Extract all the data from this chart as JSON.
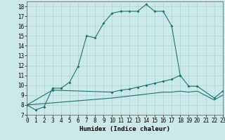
{
  "title": "",
  "xlabel": "Humidex (Indice chaleur)",
  "xlim": [
    0,
    23
  ],
  "ylim": [
    7,
    18.5
  ],
  "yticks": [
    7,
    8,
    9,
    10,
    11,
    12,
    13,
    14,
    15,
    16,
    17,
    18
  ],
  "xticks": [
    0,
    1,
    2,
    3,
    4,
    5,
    6,
    7,
    8,
    9,
    10,
    11,
    12,
    13,
    14,
    15,
    16,
    17,
    18,
    19,
    20,
    21,
    22,
    23
  ],
  "background_color": "#cce9e9",
  "grid_color": "#a8d4d4",
  "line_color": "#1e7070",
  "line1_x": [
    0,
    1,
    2,
    3,
    4,
    5,
    6,
    7,
    8,
    9,
    10,
    11,
    12,
    13,
    14,
    15,
    16,
    17,
    18
  ],
  "line1_y": [
    8.0,
    7.5,
    7.8,
    9.7,
    9.7,
    10.3,
    11.9,
    15.0,
    14.8,
    16.3,
    17.3,
    17.5,
    17.5,
    17.5,
    18.2,
    17.5,
    17.5,
    16.0,
    11.0
  ],
  "line2_x": [
    0,
    3,
    10,
    11,
    12,
    13,
    14,
    15,
    16,
    17,
    18,
    19,
    20,
    22,
    23
  ],
  "line2_y": [
    8.0,
    9.5,
    9.3,
    9.5,
    9.6,
    9.8,
    10.0,
    10.2,
    10.4,
    10.6,
    11.0,
    9.9,
    9.9,
    8.7,
    9.4
  ],
  "line3_x": [
    0,
    10,
    11,
    12,
    13,
    14,
    15,
    16,
    17,
    18,
    19,
    20,
    22,
    23
  ],
  "line3_y": [
    8.0,
    8.7,
    8.8,
    8.9,
    9.0,
    9.1,
    9.2,
    9.3,
    9.3,
    9.4,
    9.3,
    9.4,
    8.5,
    9.0
  ]
}
